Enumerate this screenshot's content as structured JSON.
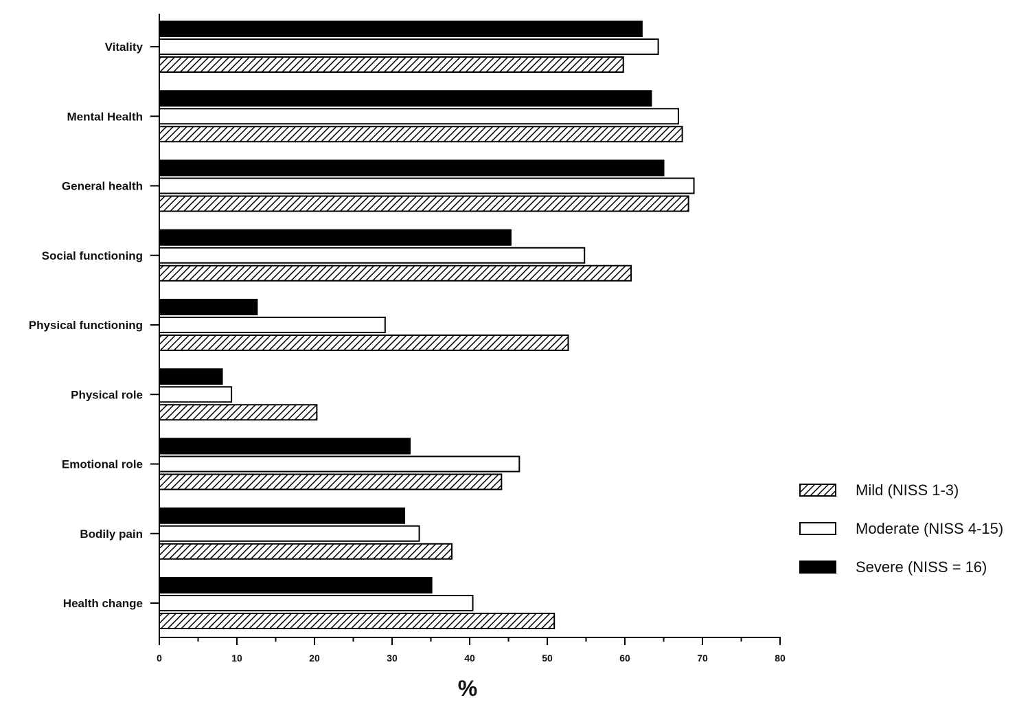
{
  "chart_data": {
    "type": "bar",
    "orientation": "horizontal",
    "title": "",
    "xlabel": "%",
    "ylabel": "",
    "xlim": [
      0,
      80
    ],
    "x_ticks": [
      0,
      10,
      20,
      30,
      40,
      50,
      60,
      70,
      80
    ],
    "grid": false,
    "legend_position": "right",
    "categories": [
      "Vitality",
      "Mental Health",
      "General health",
      "Social functioning",
      "Physical functioning",
      "Physical role",
      "Emotional role",
      "Bodily pain",
      "Health change"
    ],
    "series": [
      {
        "name": "Severe (NISS = 16)",
        "style": "solid",
        "color": "#000000",
        "values": [
          62.2,
          63.4,
          65.0,
          45.3,
          12.6,
          8.1,
          32.3,
          31.6,
          35.1
        ]
      },
      {
        "name": "Moderate (NISS 4-15)",
        "style": "outline",
        "color": "#ffffff",
        "values": [
          64.3,
          66.9,
          68.9,
          54.8,
          29.1,
          9.3,
          46.4,
          33.5,
          40.4
        ]
      },
      {
        "name": "Mild (NISS 1-3)",
        "style": "hatched",
        "color": "#000000",
        "values": [
          59.8,
          67.4,
          68.2,
          60.8,
          52.7,
          20.3,
          44.1,
          37.7,
          50.9
        ]
      }
    ],
    "legend_order": [
      "Mild (NISS 1-3)",
      "Moderate (NISS 4-15)",
      "Severe (NISS = 16)"
    ]
  }
}
